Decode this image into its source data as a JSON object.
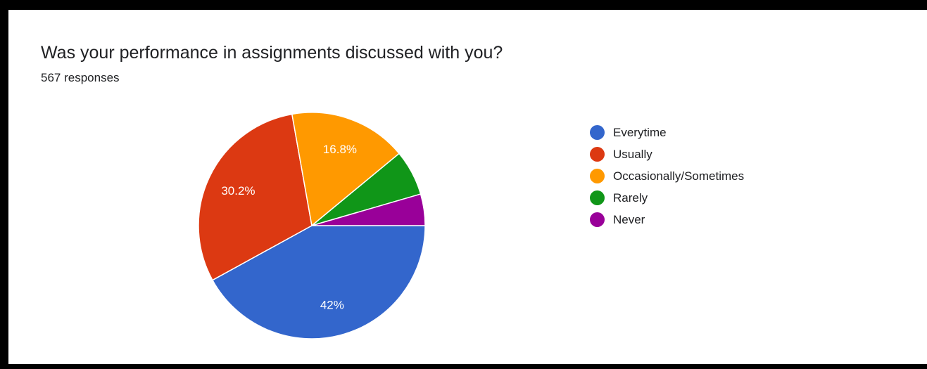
{
  "title": "Was your performance in assignments discussed with you?",
  "subtitle": "567 responses",
  "chart_data": {
    "type": "pie",
    "title": "Was your performance in assignments discussed with you?",
    "categories": [
      "Everytime",
      "Usually",
      "Occasionally/Sometimes",
      "Rarely",
      "Never"
    ],
    "values": [
      42,
      30.2,
      16.8,
      6.5,
      4.5
    ],
    "slice_labels": [
      "42%",
      "30.2%",
      "16.8%",
      "",
      ""
    ],
    "colors": [
      "#3366cc",
      "#dc3912",
      "#ff9900",
      "#109618",
      "#990099"
    ],
    "legend_position": "right"
  }
}
